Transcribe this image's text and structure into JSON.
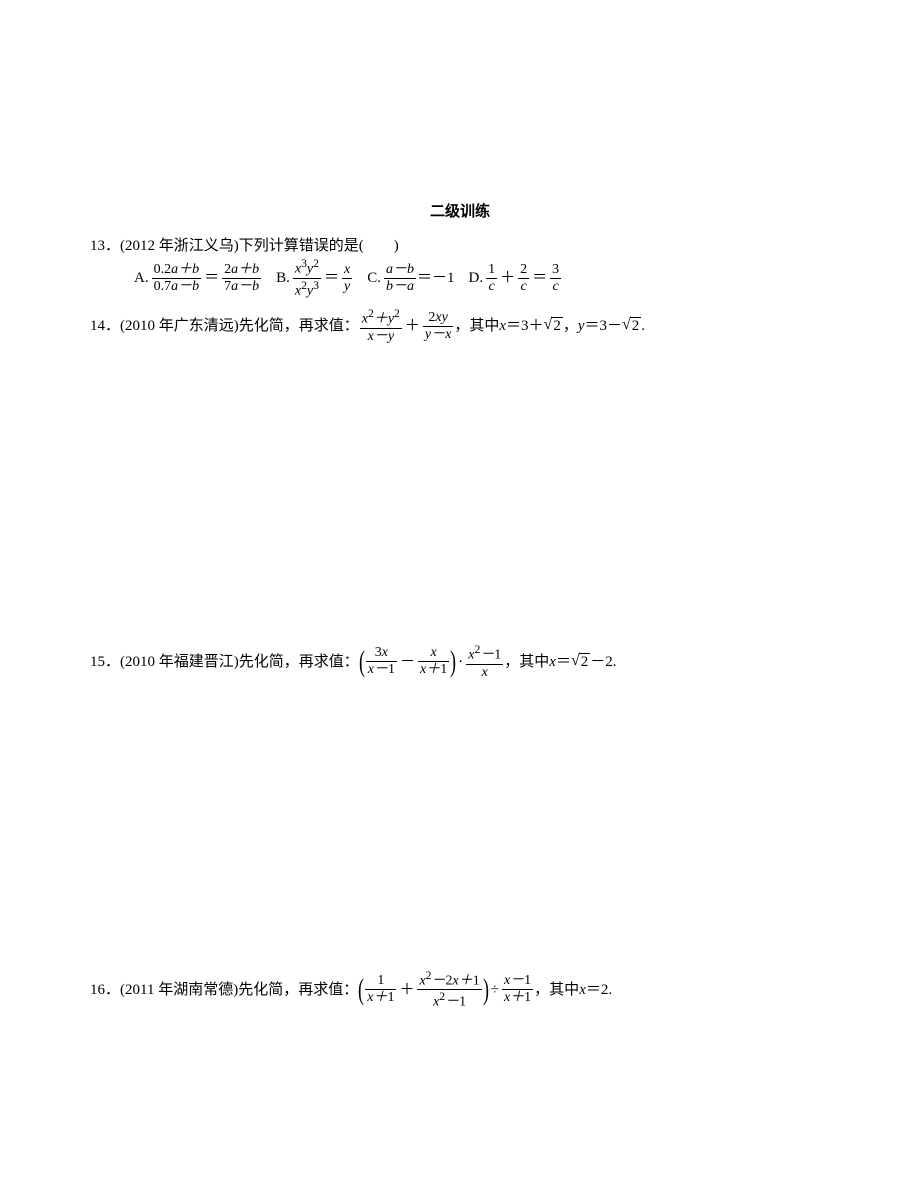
{
  "section_title": "二级训练",
  "q13": {
    "number": "13．",
    "source": "(2012 年浙江义乌)",
    "text": "下列计算错误的是(　　)",
    "options": {
      "A": {
        "label": "A."
      },
      "B": {
        "label": "B."
      },
      "C": {
        "label": "C.",
        "rhs": "＝－1"
      },
      "D": {
        "label": "D."
      }
    }
  },
  "q14": {
    "number": "14．",
    "source": "(2010 年广东清远)",
    "text1": "先化简，再求值：",
    "text2": "，其中 ",
    "x_eq": "＝3＋",
    "comma": "，",
    "y_eq": "＝3－",
    "period": "."
  },
  "q15": {
    "number": "15．",
    "source": "(2010 年福建晋江)",
    "text1": "先化简，再求值：",
    "text2": "，其中 ",
    "x_eq": "＝",
    "tail": "－2."
  },
  "q16": {
    "number": "16．",
    "source": "(2011 年湖南常德)",
    "text1": "先化简，再求值：",
    "text2": "，其中 ",
    "x_eq": "＝2."
  },
  "sym": {
    "x": "x",
    "y": "y",
    "a": "a",
    "b": "b",
    "c": "c",
    "two": "2",
    "sqrt": "√",
    "dot": "·",
    "plus": "＋",
    "minus": "－",
    "div": "÷",
    "eq": "＝"
  }
}
